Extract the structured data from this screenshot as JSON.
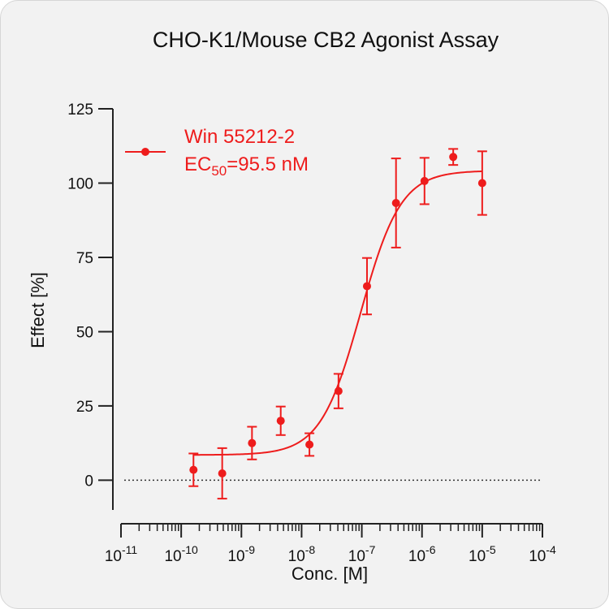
{
  "chart_data": {
    "type": "scatter",
    "title": "CHO-K1/Mouse CB2 Agonist Assay",
    "xlabel": "Conc. [M]",
    "ylabel": "Effect  [%]",
    "x_scale": "log",
    "xlim": [
      1e-11,
      0.0001
    ],
    "ylim": [
      -10,
      125
    ],
    "y_ticks": [
      0,
      25,
      50,
      75,
      100,
      125
    ],
    "x_ticks": [
      {
        "base": "10",
        "exp": "-11"
      },
      {
        "base": "10",
        "exp": "-10"
      },
      {
        "base": "10",
        "exp": "-9"
      },
      {
        "base": "10",
        "exp": "-8"
      },
      {
        "base": "10",
        "exp": "-7"
      },
      {
        "base": "10",
        "exp": "-6"
      },
      {
        "base": "10",
        "exp": "-5"
      },
      {
        "base": "10",
        "exp": "-4"
      }
    ],
    "reference_line": {
      "y": 0,
      "style": "dotted"
    },
    "legend": {
      "position": "top-left",
      "label": "Win 55212-2",
      "ec50_prefix": "EC",
      "ec50_sub": "50",
      "ec50_value": "=95.5 nM"
    },
    "series": [
      {
        "name": "Win 55212-2",
        "color": "#ee1c1c",
        "points": [
          {
            "x": 1.6e-10,
            "y": 3.5,
            "err": 5.5
          },
          {
            "x": 4.8e-10,
            "y": 2.3,
            "err": 8.5
          },
          {
            "x": 1.5e-09,
            "y": 12.5,
            "err": 5.5
          },
          {
            "x": 4.5e-09,
            "y": 20.0,
            "err": 4.8
          },
          {
            "x": 1.35e-08,
            "y": 12.0,
            "err": 3.8
          },
          {
            "x": 4.1e-08,
            "y": 30.0,
            "err": 5.8
          },
          {
            "x": 1.22e-07,
            "y": 65.3,
            "err": 9.5
          },
          {
            "x": 3.7e-07,
            "y": 93.3,
            "err": 15.0
          },
          {
            "x": 1.1e-06,
            "y": 100.7,
            "err": 7.8
          },
          {
            "x": 3.3e-06,
            "y": 108.8,
            "err": 2.7
          },
          {
            "x": 1e-05,
            "y": 100.0,
            "err": 10.7
          }
        ],
        "fit": {
          "model": "four-parameter logistic",
          "bottom": 8.5,
          "top": 104.2,
          "logEC50": -7.02,
          "hill": 1.3,
          "x_range": [
            1.6e-10,
            1e-05
          ]
        }
      }
    ]
  }
}
